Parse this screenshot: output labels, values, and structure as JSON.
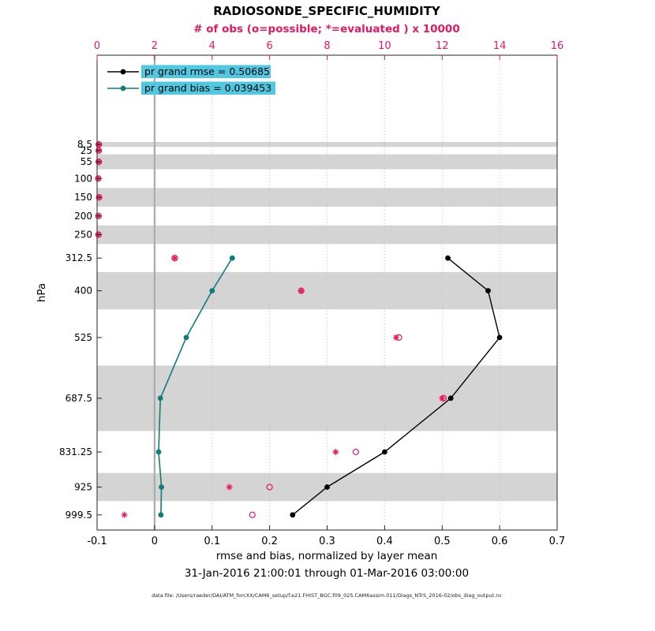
{
  "figure": {
    "footer_datafile": "data file: /Users/raeder/DAI/ATM_forcXX/CAM6_setup/f.e21.FHIST_BGC.f09_025.CAM6assim.011/Diags_NTrS_2016-02/obs_diag_output.nc"
  },
  "chart_data": {
    "type": "line",
    "title": "RADIOSONDE_SPECIFIC_HUMIDITY",
    "subtitle": "# of obs (o=possible; *=evaluated ) x 10000",
    "xlabel": "rmse and bias, normalized by layer mean",
    "timespan": "31-Jan-2016 21:00:01 through 01-Mar-2016 03:00:00",
    "ylabel": "hPa",
    "legend_position": "top-left",
    "grid": "vertical-pink-dotted",
    "x_bottom_axis": {
      "range": [
        -0.1,
        0.7
      ],
      "ticks": [
        -0.1,
        0,
        0.1,
        0.2,
        0.3,
        0.4,
        0.5,
        0.6,
        0.7
      ],
      "tick_labels": [
        "-0.1",
        "0",
        "0.1",
        "0.2",
        "0.3",
        "0.4",
        "0.5",
        "0.6",
        "0.7"
      ]
    },
    "x_top_axis": {
      "range": [
        0,
        16
      ],
      "ticks": [
        0,
        2,
        4,
        6,
        8,
        10,
        12,
        14,
        16
      ],
      "tick_labels": [
        "0",
        "2",
        "4",
        "6",
        "8",
        "10",
        "12",
        "14",
        "16"
      ]
    },
    "y_axis": {
      "unit": "hPa",
      "range": [
        -230,
        1040
      ],
      "levels": [
        8.5,
        25,
        55,
        100,
        150,
        200,
        250,
        312.5,
        400,
        525,
        687.5,
        831.25,
        925,
        999.5
      ],
      "tick_labels": [
        "8.5",
        "25",
        "55",
        "100",
        "150",
        "200",
        "250",
        "312.5",
        "400",
        "525",
        "687.5",
        "831.25",
        "925",
        "999.5"
      ]
    },
    "shaded_layers": [
      [
        2,
        15
      ],
      [
        35,
        75
      ],
      [
        125,
        175
      ],
      [
        225,
        275
      ],
      [
        350,
        450
      ],
      [
        600,
        775
      ],
      [
        887.5,
        962.5
      ]
    ],
    "zero_line_x": 0,
    "series": [
      {
        "name": "rmse",
        "legend_label": "pr grand rmse = 0.50685",
        "grand_value": 0.50685,
        "color": "#000000",
        "axis": "bottom",
        "marker": "dot",
        "line": true,
        "levels": [
          312.5,
          400,
          525,
          687.5,
          831.25,
          925,
          999.5
        ],
        "values": [
          0.51,
          0.58,
          0.6,
          0.515,
          0.4,
          0.3,
          0.24
        ]
      },
      {
        "name": "bias",
        "legend_label": "pr grand bias = 0.039453",
        "grand_value": 0.039453,
        "color": "#0f7d7b",
        "axis": "bottom",
        "marker": "dot",
        "line": true,
        "levels": [
          312.5,
          400,
          525,
          687.5,
          831.25,
          925,
          999.5
        ],
        "values": [
          0.135,
          0.1,
          0.055,
          0.01,
          0.007,
          0.012,
          0.011
        ]
      },
      {
        "name": "possible-obs",
        "legend_label": "o = possible",
        "color": "#e8175d",
        "axis": "top",
        "marker": "o",
        "line": false,
        "levels": [
          8.5,
          25,
          55,
          100,
          150,
          200,
          250,
          312.5,
          400,
          525,
          687.5,
          831.25,
          925,
          999.5
        ],
        "values": [
          0.06,
          0.06,
          0.06,
          0.04,
          0.07,
          0.05,
          0.05,
          2.7,
          7.1,
          10.5,
          12.05,
          9.0,
          6.0,
          5.4
        ]
      },
      {
        "name": "evaluated-obs",
        "legend_label": "* = evaluated",
        "color": "#e8175d",
        "axis": "top",
        "marker": "asterisk",
        "line": false,
        "levels": [
          8.5,
          25,
          55,
          100,
          150,
          200,
          250,
          312.5,
          400,
          525,
          687.5,
          831.25,
          925,
          999.5
        ],
        "values": [
          0.06,
          0.06,
          0.06,
          0.04,
          0.07,
          0.05,
          0.05,
          2.7,
          7.1,
          10.4,
          12.0,
          8.3,
          4.6,
          0.95
        ]
      }
    ],
    "colors": {
      "pink": "#e8175d",
      "teal": "#0f7d7b",
      "band": "#d4d4d4",
      "grid_pink": "#f3a8c3",
      "zero_line": "#ababab",
      "legend_highlight": "#4ec9e1",
      "frame": "#262626"
    }
  }
}
